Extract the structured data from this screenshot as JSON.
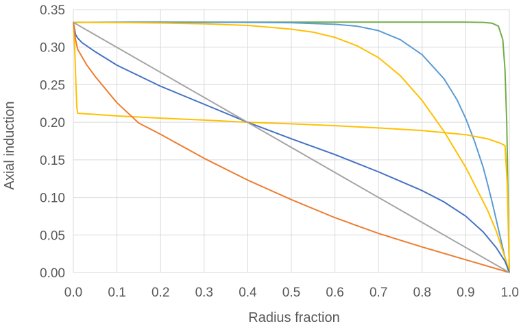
{
  "chart_data": {
    "type": "line",
    "title": "",
    "xlabel": "Radius fraction",
    "ylabel": "Axial induction",
    "xlim": [
      0,
      1
    ],
    "ylim": [
      0,
      0.35
    ],
    "grid": true,
    "legend": "none",
    "x_ticks": [
      "0.0",
      "0.1",
      "0.2",
      "0.3",
      "0.4",
      "0.5",
      "0.6",
      "0.7",
      "0.8",
      "0.9",
      "1.0"
    ],
    "y_ticks": [
      "0.00",
      "0.05",
      "0.10",
      "0.15",
      "0.20",
      "0.25",
      "0.30",
      "0.35"
    ],
    "series": [
      {
        "name": "series-green",
        "color": "#70ad47",
        "points": [
          [
            0,
            0.333
          ],
          [
            0.2,
            0.3333
          ],
          [
            0.5,
            0.3333
          ],
          [
            0.8,
            0.3333
          ],
          [
            0.9,
            0.3333
          ],
          [
            0.94,
            0.333
          ],
          [
            0.96,
            0.332
          ],
          [
            0.975,
            0.328
          ],
          [
            0.985,
            0.31
          ],
          [
            0.99,
            0.27
          ],
          [
            0.994,
            0.2
          ],
          [
            0.997,
            0.1
          ],
          [
            0.999,
            0.03
          ],
          [
            1.0,
            0.0
          ]
        ]
      },
      {
        "name": "series-light-blue",
        "color": "#5b9bd5",
        "points": [
          [
            0,
            0.333
          ],
          [
            0.2,
            0.3333
          ],
          [
            0.4,
            0.333
          ],
          [
            0.5,
            0.3325
          ],
          [
            0.6,
            0.3305
          ],
          [
            0.65,
            0.328
          ],
          [
            0.7,
            0.322
          ],
          [
            0.75,
            0.31
          ],
          [
            0.8,
            0.29
          ],
          [
            0.85,
            0.258
          ],
          [
            0.88,
            0.23
          ],
          [
            0.9,
            0.205
          ],
          [
            0.92,
            0.175
          ],
          [
            0.94,
            0.14
          ],
          [
            0.95,
            0.118
          ],
          [
            0.96,
            0.095
          ],
          [
            0.97,
            0.07
          ],
          [
            0.98,
            0.045
          ],
          [
            0.99,
            0.02
          ],
          [
            1.0,
            0.0
          ]
        ]
      },
      {
        "name": "series-yellow-upper",
        "color": "#ffc000",
        "points": [
          [
            0,
            0.333
          ],
          [
            0.1,
            0.3328
          ],
          [
            0.2,
            0.3322
          ],
          [
            0.3,
            0.331
          ],
          [
            0.4,
            0.329
          ],
          [
            0.5,
            0.324
          ],
          [
            0.55,
            0.32
          ],
          [
            0.6,
            0.313
          ],
          [
            0.65,
            0.302
          ],
          [
            0.7,
            0.286
          ],
          [
            0.75,
            0.262
          ],
          [
            0.8,
            0.229
          ],
          [
            0.85,
            0.188
          ],
          [
            0.9,
            0.14
          ],
          [
            0.95,
            0.083
          ],
          [
            0.97,
            0.055
          ],
          [
            0.99,
            0.02
          ],
          [
            1.0,
            0.0
          ]
        ]
      },
      {
        "name": "series-yellow-lower",
        "color": "#ffc000",
        "points": [
          [
            0,
            0.333
          ],
          [
            0.003,
            0.3
          ],
          [
            0.006,
            0.25
          ],
          [
            0.008,
            0.22
          ],
          [
            0.01,
            0.212
          ],
          [
            0.1,
            0.2085
          ],
          [
            0.2,
            0.2055
          ],
          [
            0.3,
            0.203
          ],
          [
            0.4,
            0.2
          ],
          [
            0.5,
            0.198
          ],
          [
            0.6,
            0.1955
          ],
          [
            0.7,
            0.1925
          ],
          [
            0.8,
            0.189
          ],
          [
            0.9,
            0.1835
          ],
          [
            0.95,
            0.178
          ],
          [
            0.98,
            0.172
          ],
          [
            0.99,
            0.169
          ],
          [
            0.995,
            0.12
          ],
          [
            0.998,
            0.05
          ],
          [
            1.0,
            0.0
          ]
        ]
      },
      {
        "name": "series-dark-blue",
        "color": "#4472c4",
        "points": [
          [
            0,
            0.333
          ],
          [
            0.005,
            0.317
          ],
          [
            0.01,
            0.312
          ],
          [
            0.02,
            0.306
          ],
          [
            0.05,
            0.294
          ],
          [
            0.1,
            0.276
          ],
          [
            0.2,
            0.248
          ],
          [
            0.3,
            0.224
          ],
          [
            0.4,
            0.2
          ],
          [
            0.5,
            0.178
          ],
          [
            0.6,
            0.157
          ],
          [
            0.7,
            0.134
          ],
          [
            0.8,
            0.109
          ],
          [
            0.85,
            0.094
          ],
          [
            0.9,
            0.075
          ],
          [
            0.94,
            0.054
          ],
          [
            0.97,
            0.033
          ],
          [
            0.99,
            0.015
          ],
          [
            1.0,
            0.0
          ]
        ]
      },
      {
        "name": "series-orange",
        "color": "#ed7d31",
        "points": [
          [
            0,
            0.333
          ],
          [
            0.005,
            0.31
          ],
          [
            0.01,
            0.297
          ],
          [
            0.03,
            0.277
          ],
          [
            0.05,
            0.261
          ],
          [
            0.1,
            0.226
          ],
          [
            0.15,
            0.199
          ],
          [
            0.2,
            0.184
          ],
          [
            0.3,
            0.152
          ],
          [
            0.4,
            0.123
          ],
          [
            0.5,
            0.097
          ],
          [
            0.6,
            0.073
          ],
          [
            0.7,
            0.052
          ],
          [
            0.8,
            0.034
          ],
          [
            0.9,
            0.017
          ],
          [
            1.0,
            0.0
          ]
        ]
      },
      {
        "name": "series-gray",
        "color": "#a5a5a5",
        "points": [
          [
            0,
            0.333
          ],
          [
            1.0,
            0.0
          ]
        ]
      }
    ]
  }
}
